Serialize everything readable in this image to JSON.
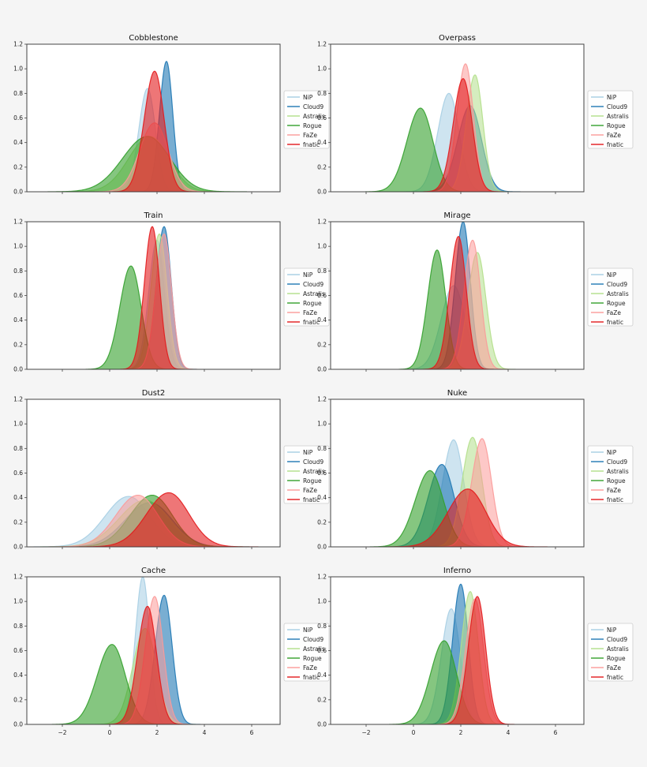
{
  "chart_data": {
    "type": "area",
    "description_kind": "grid of kernel density plots, 4 rows x 2 columns, sharex",
    "x_ticks": [
      -2,
      0,
      2,
      4,
      6
    ],
    "y_ticks": [
      0.0,
      0.2,
      0.4,
      0.6,
      0.8,
      1.0,
      1.2
    ],
    "xlim": [
      -3.5,
      7.2
    ],
    "ylim": [
      0,
      1.2
    ],
    "legend_placement": "right, outside each plot, vertically centered",
    "legend_entries": [
      "NiP",
      "Cloud9",
      "Astralis",
      "Rogue",
      "FaZe",
      "fnatic"
    ],
    "series_colors": {
      "NiP": "#a6cee3",
      "Cloud9": "#1f78b4",
      "Astralis": "#b2df8a",
      "Rogue": "#33a02c",
      "FaZe": "#fb9a99",
      "fnatic": "#e31a1c"
    },
    "panels": [
      {
        "title": "Cobblestone",
        "series": [
          {
            "name": "NiP",
            "peak_x": 1.6,
            "peak_y": 0.84
          },
          {
            "name": "Cloud9",
            "peak_x": 2.4,
            "peak_y": 1.06
          },
          {
            "name": "Astralis",
            "peak_x": 1.7,
            "peak_y": 0.45
          },
          {
            "name": "Rogue",
            "peak_x": 1.6,
            "peak_y": 0.45
          },
          {
            "name": "FaZe",
            "peak_x": 1.9,
            "peak_y": 0.56
          },
          {
            "name": "fnatic",
            "peak_x": 1.9,
            "peak_y": 0.98
          }
        ]
      },
      {
        "title": "Overpass",
        "series": [
          {
            "name": "NiP",
            "peak_x": 1.5,
            "peak_y": 0.8
          },
          {
            "name": "Cloud9",
            "peak_x": 2.4,
            "peak_y": 0.7
          },
          {
            "name": "Astralis",
            "peak_x": 2.6,
            "peak_y": 0.95
          },
          {
            "name": "Rogue",
            "peak_x": 0.3,
            "peak_y": 0.68
          },
          {
            "name": "FaZe",
            "peak_x": 2.2,
            "peak_y": 1.04
          },
          {
            "name": "fnatic",
            "peak_x": 2.1,
            "peak_y": 0.92
          }
        ]
      },
      {
        "title": "Train",
        "series": [
          {
            "name": "NiP",
            "peak_x": 2.0,
            "peak_y": 1.05
          },
          {
            "name": "Cloud9",
            "peak_x": 2.3,
            "peak_y": 1.16
          },
          {
            "name": "Astralis",
            "peak_x": 2.1,
            "peak_y": 1.1
          },
          {
            "name": "Rogue",
            "peak_x": 0.9,
            "peak_y": 0.84
          },
          {
            "name": "FaZe",
            "peak_x": 2.3,
            "peak_y": 1.1
          },
          {
            "name": "fnatic",
            "peak_x": 1.8,
            "peak_y": 1.16
          }
        ]
      },
      {
        "title": "Mirage",
        "series": [
          {
            "name": "NiP",
            "peak_x": 1.7,
            "peak_y": 0.68
          },
          {
            "name": "Cloud9",
            "peak_x": 2.1,
            "peak_y": 1.2
          },
          {
            "name": "Astralis",
            "peak_x": 2.7,
            "peak_y": 0.95
          },
          {
            "name": "Rogue",
            "peak_x": 1.0,
            "peak_y": 0.97
          },
          {
            "name": "FaZe",
            "peak_x": 2.5,
            "peak_y": 1.05
          },
          {
            "name": "fnatic",
            "peak_x": 1.9,
            "peak_y": 1.08
          }
        ]
      },
      {
        "title": "Dust2",
        "series": [
          {
            "name": "NiP",
            "peak_x": 0.8,
            "peak_y": 0.41
          },
          {
            "name": "Cloud9",
            "peak_x": 1.7,
            "peak_y": 0.36
          },
          {
            "name": "Astralis",
            "peak_x": 1.5,
            "peak_y": 0.38
          },
          {
            "name": "Rogue",
            "peak_x": 1.8,
            "peak_y": 0.42
          },
          {
            "name": "FaZe",
            "peak_x": 1.2,
            "peak_y": 0.42
          },
          {
            "name": "fnatic",
            "peak_x": 2.5,
            "peak_y": 0.44
          }
        ]
      },
      {
        "title": "Nuke",
        "series": [
          {
            "name": "NiP",
            "peak_x": 1.7,
            "peak_y": 0.87
          },
          {
            "name": "Cloud9",
            "peak_x": 1.2,
            "peak_y": 0.67
          },
          {
            "name": "Astralis",
            "peak_x": 2.5,
            "peak_y": 0.89
          },
          {
            "name": "Rogue",
            "peak_x": 0.7,
            "peak_y": 0.62
          },
          {
            "name": "FaZe",
            "peak_x": 2.9,
            "peak_y": 0.88
          },
          {
            "name": "fnatic",
            "peak_x": 2.3,
            "peak_y": 0.47
          }
        ]
      },
      {
        "title": "Cache",
        "series": [
          {
            "name": "NiP",
            "peak_x": 1.4,
            "peak_y": 1.2
          },
          {
            "name": "Cloud9",
            "peak_x": 2.3,
            "peak_y": 1.05
          },
          {
            "name": "Astralis",
            "peak_x": 1.5,
            "peak_y": 0.78
          },
          {
            "name": "Rogue",
            "peak_x": 0.1,
            "peak_y": 0.65
          },
          {
            "name": "FaZe",
            "peak_x": 1.9,
            "peak_y": 1.04
          },
          {
            "name": "fnatic",
            "peak_x": 1.6,
            "peak_y": 0.96
          }
        ]
      },
      {
        "title": "Inferno",
        "series": [
          {
            "name": "NiP",
            "peak_x": 1.6,
            "peak_y": 0.94
          },
          {
            "name": "Cloud9",
            "peak_x": 2.0,
            "peak_y": 1.14
          },
          {
            "name": "Astralis",
            "peak_x": 2.4,
            "peak_y": 1.08
          },
          {
            "name": "Rogue",
            "peak_x": 1.3,
            "peak_y": 0.68
          },
          {
            "name": "FaZe",
            "peak_x": 2.6,
            "peak_y": 1.02
          },
          {
            "name": "fnatic",
            "peak_x": 2.7,
            "peak_y": 1.04
          }
        ]
      }
    ]
  }
}
